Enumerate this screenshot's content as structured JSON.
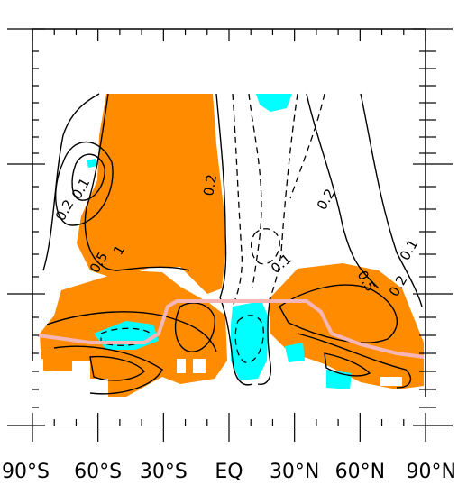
{
  "chart_data": {
    "type": "contour",
    "title": "",
    "xlabel": "",
    "ylabel": "",
    "x_tick_labels": [
      "90°S",
      "60°S",
      "30°S",
      "EQ",
      "30°N",
      "60°N",
      "90°N"
    ],
    "x_tick_values": [
      -90,
      -60,
      -30,
      0,
      30,
      60,
      90
    ],
    "xlim": [
      -90,
      90
    ],
    "y_tick_labels": [],
    "contour_labels": [
      "0.2",
      "0.1",
      "1",
      "0.5",
      "0.2",
      "0.2",
      "0.1",
      "0.5",
      "0.2",
      "0.1"
    ],
    "shading": {
      "positive_fill_color": "#ff8c00",
      "negative_fill_color": "#00ffff",
      "tropopause_line_color": "#f4b6b6"
    },
    "line_styles": {
      "positive": "solid",
      "negative": "dashed"
    },
    "grid": false,
    "legend": "none"
  }
}
